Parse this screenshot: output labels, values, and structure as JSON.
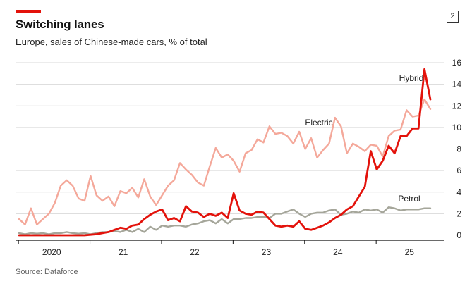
{
  "header": {
    "title": "Switching lanes",
    "subtitle": "Europe, sales of Chinese-made cars, % of total",
    "badge": "2"
  },
  "footer": {
    "source": "Source: Dataforce"
  },
  "colors": {
    "accent": "#e3120b",
    "hybrid": "#e3120b",
    "electric": "#f4a89a",
    "petrol": "#a5a69a",
    "grid": "#d9d9d9",
    "axis": "#111111"
  },
  "chart_data": {
    "type": "line",
    "title": "Switching lanes",
    "subtitle": "Europe, sales of Chinese-made cars, % of total",
    "xlabel": "",
    "ylabel": "",
    "ylim": [
      0,
      16
    ],
    "yticks": [
      0,
      2,
      4,
      6,
      8,
      10,
      12,
      14,
      16
    ],
    "grid": true,
    "x_start": "2019-08",
    "x_end": "2025-10",
    "xticks": [
      {
        "label": "2020",
        "month_index": 5
      },
      {
        "label": "21",
        "month_index": 17
      },
      {
        "label": "22",
        "month_index": 29
      },
      {
        "label": "23",
        "month_index": 41
      },
      {
        "label": "24",
        "month_index": 53
      },
      {
        "label": "25",
        "month_index": 65
      }
    ],
    "series": [
      {
        "name": "Electric",
        "values": [
          1.5,
          1.0,
          2.5,
          1.0,
          1.5,
          2.0,
          3.0,
          4.6,
          5.1,
          4.6,
          3.4,
          3.2,
          5.5,
          3.7,
          3.2,
          3.6,
          2.7,
          4.1,
          3.9,
          4.4,
          3.5,
          5.2,
          3.6,
          2.8,
          3.7,
          4.6,
          5.1,
          6.7,
          6.1,
          5.6,
          4.9,
          4.6,
          6.4,
          8.1,
          7.2,
          7.5,
          6.9,
          5.9,
          7.6,
          7.9,
          8.9,
          8.6,
          10.1,
          9.4,
          9.5,
          9.2,
          8.5,
          9.6,
          8.0,
          9.0,
          7.2,
          7.9,
          8.5,
          10.9,
          10.1,
          7.6,
          8.5,
          8.2,
          7.8,
          8.4,
          8.3,
          7.3,
          9.2,
          9.7,
          9.8,
          11.6,
          11.0,
          11.1,
          12.6,
          11.7
        ]
      },
      {
        "name": "Hybrid",
        "values": [
          0,
          0,
          0,
          0,
          0,
          0,
          0,
          0,
          0,
          0,
          0,
          0,
          0.05,
          0.1,
          0.2,
          0.3,
          0.5,
          0.7,
          0.6,
          0.9,
          1.0,
          1.5,
          1.9,
          2.2,
          2.4,
          1.4,
          1.6,
          1.3,
          2.7,
          2.2,
          2.1,
          1.7,
          2.0,
          1.8,
          2.1,
          1.6,
          3.9,
          2.3,
          2.0,
          1.9,
          2.2,
          2.1,
          1.5,
          0.9,
          0.8,
          0.9,
          0.8,
          1.3,
          0.6,
          0.5,
          0.7,
          0.9,
          1.2,
          1.6,
          1.9,
          2.4,
          2.7,
          3.6,
          4.5,
          7.8,
          6.1,
          6.9,
          8.3,
          7.6,
          9.2,
          9.2,
          9.9,
          9.9,
          15.4,
          12.6
        ]
      },
      {
        "name": "Petrol",
        "values": [
          0.2,
          0.1,
          0.2,
          0.15,
          0.2,
          0.1,
          0.2,
          0.2,
          0.3,
          0.2,
          0.15,
          0.2,
          0.1,
          0.2,
          0.3,
          0.3,
          0.4,
          0.3,
          0.5,
          0.3,
          0.6,
          0.3,
          0.8,
          0.5,
          0.9,
          0.8,
          0.9,
          0.9,
          0.8,
          1.0,
          1.1,
          1.3,
          1.4,
          1.1,
          1.5,
          1.1,
          1.5,
          1.5,
          1.6,
          1.6,
          1.7,
          1.7,
          1.6,
          2.0,
          2.0,
          2.2,
          2.4,
          2.0,
          1.7,
          2.0,
          2.1,
          2.1,
          2.3,
          2.4,
          1.9,
          2.0,
          2.2,
          2.1,
          2.4,
          2.3,
          2.4,
          2.1,
          2.6,
          2.5,
          2.3,
          2.4,
          2.4,
          2.4,
          2.5,
          2.5
        ]
      }
    ],
    "annotations": [
      {
        "text": "Hybrid",
        "series": "Hybrid"
      },
      {
        "text": "Electric",
        "series": "Electric"
      },
      {
        "text": "Petrol",
        "series": "Petrol"
      }
    ]
  }
}
